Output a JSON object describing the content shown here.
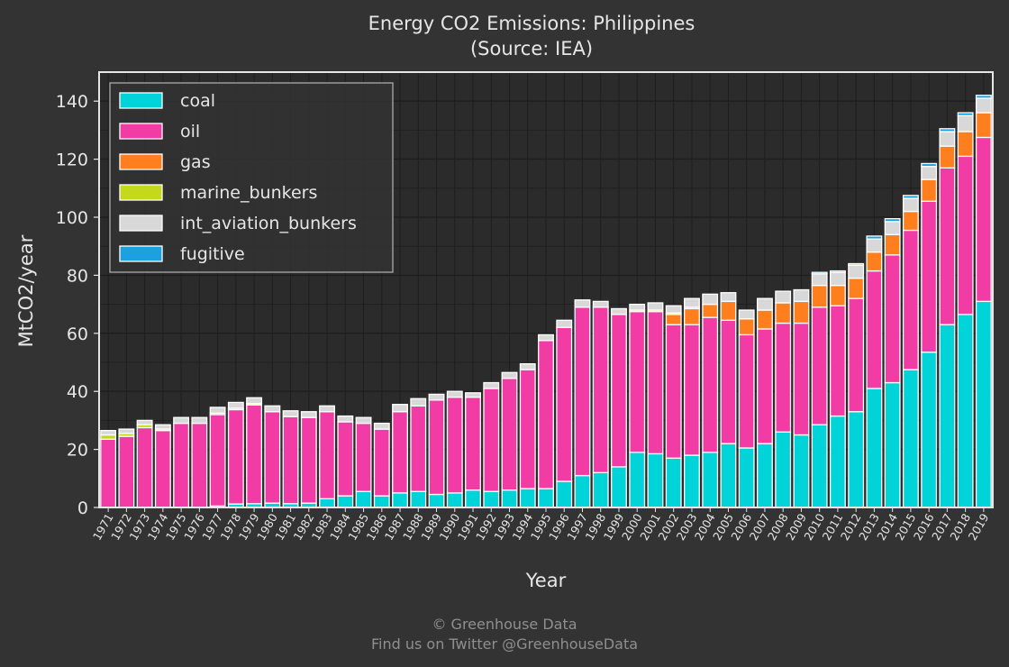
{
  "chart_data": {
    "type": "bar",
    "stacked": true,
    "title": "Energy CO2 Emissions: Philippines",
    "subtitle": "(Source: IEA)",
    "xlabel": "Year",
    "ylabel": "MtCO2/year",
    "ylim": [
      0,
      150
    ],
    "yticks": [
      0,
      20,
      40,
      60,
      80,
      100,
      120,
      140
    ],
    "grid": true,
    "legend_position": "top-left",
    "categories": [
      "1971",
      "1972",
      "1973",
      "1974",
      "1975",
      "1976",
      "1977",
      "1978",
      "1979",
      "1980",
      "1981",
      "1982",
      "1983",
      "1984",
      "1985",
      "1986",
      "1987",
      "1988",
      "1989",
      "1990",
      "1991",
      "1992",
      "1993",
      "1994",
      "1995",
      "1996",
      "1997",
      "1998",
      "1999",
      "2000",
      "2001",
      "2002",
      "2003",
      "2004",
      "2005",
      "2006",
      "2007",
      "2008",
      "2009",
      "2010",
      "2011",
      "2012",
      "2013",
      "2014",
      "2015",
      "2016",
      "2017",
      "2018",
      "2019"
    ],
    "series": [
      {
        "name": "coal",
        "color": "#00d4d8",
        "values": [
          0,
          0,
          0,
          0,
          0,
          0,
          0.5,
          1.2,
          1.3,
          1.5,
          1.3,
          1.5,
          3,
          4,
          5.5,
          4,
          5,
          5.5,
          4.5,
          5,
          6,
          5.5,
          6,
          6.5,
          6.5,
          9,
          11,
          12,
          14,
          19,
          18.5,
          17,
          18,
          19,
          22,
          20.5,
          22,
          26,
          25,
          28.5,
          31.5,
          33,
          41,
          43,
          47.5,
          53.5,
          63,
          66.5,
          71
        ]
      },
      {
        "name": "oil",
        "color": "#f23ca5",
        "values": [
          23.5,
          24.5,
          27.5,
          26.5,
          29,
          29,
          31.5,
          32.5,
          34,
          31.5,
          30,
          29.5,
          30,
          25.5,
          23.5,
          23,
          28,
          29.5,
          32.5,
          33,
          32,
          35.5,
          38.5,
          41,
          51,
          53,
          58,
          57,
          52.5,
          48.5,
          49,
          46,
          45,
          46.5,
          42.5,
          39,
          39.5,
          37.5,
          38.5,
          40.5,
          38,
          39,
          40.5,
          44,
          48,
          52,
          54,
          54.5,
          56.5
        ]
      },
      {
        "name": "gas",
        "color": "#ff7f1f",
        "values": [
          0,
          0,
          0,
          0,
          0,
          0,
          0,
          0,
          0,
          0,
          0,
          0,
          0,
          0,
          0,
          0,
          0,
          0,
          0,
          0,
          0,
          0,
          0,
          0,
          0,
          0,
          0,
          0,
          0,
          0,
          0,
          3.5,
          5.5,
          4.5,
          6.5,
          5.5,
          6.5,
          7,
          7.5,
          7.5,
          7,
          7,
          6.5,
          7,
          6.5,
          7.5,
          7.5,
          8.5,
          8.5
        ]
      },
      {
        "name": "marine_bunkers",
        "color": "#c4d81c",
        "values": [
          1.5,
          1,
          1,
          0.5,
          0,
          0,
          0.5,
          0.5,
          0.5,
          0,
          0,
          0,
          0,
          0,
          0,
          0,
          0,
          0,
          0,
          0,
          0,
          0,
          0,
          0,
          0,
          0,
          0,
          0,
          0,
          0.5,
          0.5,
          0.5,
          0.5,
          0,
          0,
          0,
          0,
          0,
          0,
          0,
          0,
          0,
          0,
          0,
          0,
          0,
          0,
          0,
          0
        ]
      },
      {
        "name": "int_aviation_bunkers",
        "color": "#d8d8d8",
        "values": [
          1.5,
          1.5,
          1.5,
          1.5,
          2,
          2,
          2,
          2,
          2,
          2,
          2,
          2,
          2,
          2,
          2,
          2,
          2.5,
          2.5,
          2,
          2,
          1.5,
          2,
          2,
          2,
          2,
          2.5,
          2.5,
          2,
          2,
          2,
          2.5,
          2.5,
          3,
          3.5,
          3,
          3,
          4,
          4,
          4,
          4,
          4.5,
          4.5,
          4.5,
          4.5,
          4.5,
          4.5,
          5,
          5.5,
          5
        ]
      },
      {
        "name": "fugitive",
        "color": "#1ca0e0",
        "values": [
          0,
          0,
          0,
          0,
          0,
          0,
          0,
          0,
          0,
          0,
          0,
          0,
          0,
          0,
          0,
          0,
          0,
          0,
          0,
          0,
          0,
          0,
          0,
          0,
          0,
          0,
          0,
          0,
          0,
          0,
          0,
          0,
          0,
          0,
          0,
          0,
          0,
          0,
          0,
          0.5,
          0.5,
          0.5,
          1,
          1,
          1,
          1,
          1,
          1,
          1
        ]
      }
    ]
  },
  "credits": {
    "line1": "© Greenhouse Data",
    "line2": "Find us on Twitter @GreenhouseData"
  },
  "colors": {
    "background": "#333333",
    "plot_background": "#2b2b2b",
    "grid": "#1e1e1e",
    "text": "#e6e6e6",
    "bar_edge": "#ffffff"
  }
}
